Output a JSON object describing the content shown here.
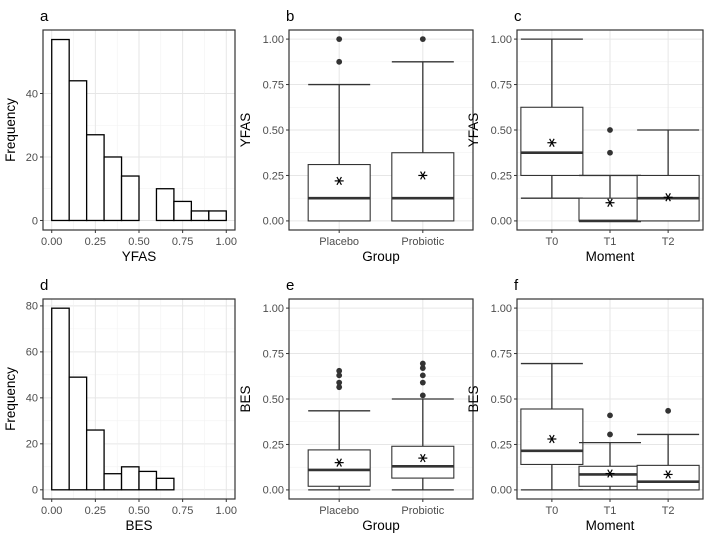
{
  "chart_data": [
    {
      "id": "a",
      "panel_label": "a",
      "type": "histogram",
      "xlabel": "YFAS",
      "ylabel": "Frequency",
      "xlim": [
        -0.05,
        1.05
      ],
      "ylim": [
        -3,
        60
      ],
      "x_ticks": [
        0.0,
        0.25,
        0.5,
        0.75,
        1.0
      ],
      "x_tick_labels": [
        "0.00",
        "0.25",
        "0.50",
        "0.75",
        "1.00"
      ],
      "y_ticks": [
        0,
        20,
        40
      ],
      "y_tick_labels": [
        "0",
        "20",
        "40"
      ],
      "bin_width": 0.1,
      "bin_centers": [
        0.05,
        0.15,
        0.25,
        0.35,
        0.45,
        0.65,
        0.75,
        0.85,
        0.95
      ],
      "counts": [
        57,
        44,
        27,
        20,
        14,
        10,
        6,
        3,
        3
      ]
    },
    {
      "id": "b",
      "panel_label": "b",
      "type": "boxplot",
      "xlabel": "Group",
      "ylabel": "YFAS",
      "ylim": [
        -0.05,
        1.05
      ],
      "y_ticks": [
        0,
        0.25,
        0.5,
        0.75,
        1.0
      ],
      "y_tick_labels": [
        "0.00",
        "0.25",
        "0.50",
        "0.75",
        "1.00"
      ],
      "categories": [
        "Placebo",
        "Probiotic"
      ],
      "boxes": [
        {
          "min": 0.0,
          "q1": 0.0,
          "median": 0.125,
          "q3": 0.31,
          "max": 0.75,
          "mean": 0.22,
          "outliers": [
            0.875,
            1.0
          ]
        },
        {
          "min": 0.0,
          "q1": 0.0,
          "median": 0.125,
          "q3": 0.375,
          "max": 0.875,
          "mean": 0.25,
          "outliers": [
            1.0
          ]
        }
      ]
    },
    {
      "id": "c",
      "panel_label": "c",
      "type": "boxplot",
      "xlabel": "Moment",
      "ylabel": "YFAS",
      "ylim": [
        -0.05,
        1.05
      ],
      "y_ticks": [
        0,
        0.25,
        0.5,
        0.75,
        1.0
      ],
      "y_tick_labels": [
        "0.00",
        "0.25",
        "0.50",
        "0.75",
        "1.00"
      ],
      "categories": [
        "T0",
        "T1",
        "T2"
      ],
      "boxes": [
        {
          "min": 0.125,
          "q1": 0.25,
          "median": 0.375,
          "q3": 0.625,
          "max": 1.0,
          "mean": 0.43,
          "outliers": []
        },
        {
          "min": 0.0,
          "q1": 0.0,
          "median": 0.0,
          "q3": 0.125,
          "max": 0.25,
          "mean": 0.1,
          "outliers": [
            0.375,
            0.5
          ]
        },
        {
          "min": 0.0,
          "q1": 0.0,
          "median": 0.125,
          "q3": 0.25,
          "max": 0.5,
          "mean": 0.13,
          "outliers": []
        }
      ]
    },
    {
      "id": "d",
      "panel_label": "d",
      "type": "histogram",
      "xlabel": "BES",
      "ylabel": "Frequency",
      "xlim": [
        -0.05,
        1.05
      ],
      "ylim": [
        -4,
        83
      ],
      "x_ticks": [
        0.0,
        0.25,
        0.5,
        0.75,
        1.0
      ],
      "x_tick_labels": [
        "0.00",
        "0.25",
        "0.50",
        "0.75",
        "1.00"
      ],
      "y_ticks": [
        0,
        20,
        40,
        60,
        80
      ],
      "y_tick_labels": [
        "0",
        "20",
        "40",
        "60",
        "80"
      ],
      "bin_width": 0.1,
      "bin_centers": [
        0.05,
        0.15,
        0.25,
        0.35,
        0.45,
        0.55,
        0.65
      ],
      "counts": [
        79,
        49,
        26,
        7,
        10,
        8,
        5
      ]
    },
    {
      "id": "e",
      "panel_label": "e",
      "type": "boxplot",
      "xlabel": "Group",
      "ylabel": "BES",
      "ylim": [
        -0.05,
        1.05
      ],
      "y_ticks": [
        0,
        0.25,
        0.5,
        0.75,
        1.0
      ],
      "y_tick_labels": [
        "0.00",
        "0.25",
        "0.50",
        "0.75",
        "1.00"
      ],
      "categories": [
        "Placebo",
        "Probiotic"
      ],
      "boxes": [
        {
          "min": 0.0,
          "q1": 0.02,
          "median": 0.11,
          "q3": 0.22,
          "max": 0.435,
          "mean": 0.15,
          "outliers": [
            0.565,
            0.59,
            0.63,
            0.655
          ]
        },
        {
          "min": 0.0,
          "q1": 0.065,
          "median": 0.13,
          "q3": 0.24,
          "max": 0.5,
          "mean": 0.175,
          "outliers": [
            0.52,
            0.59,
            0.63,
            0.67,
            0.695
          ]
        }
      ]
    },
    {
      "id": "f",
      "panel_label": "f",
      "type": "boxplot",
      "xlabel": "Moment",
      "ylabel": "BES",
      "ylim": [
        -0.05,
        1.05
      ],
      "y_ticks": [
        0,
        0.25,
        0.5,
        0.75,
        1.0
      ],
      "y_tick_labels": [
        "0.00",
        "0.25",
        "0.50",
        "0.75",
        "1.00"
      ],
      "categories": [
        "T0",
        "T1",
        "T2"
      ],
      "boxes": [
        {
          "min": 0.0,
          "q1": 0.14,
          "median": 0.215,
          "q3": 0.445,
          "max": 0.695,
          "mean": 0.28,
          "outliers": []
        },
        {
          "min": 0.0,
          "q1": 0.02,
          "median": 0.085,
          "q3": 0.13,
          "max": 0.26,
          "mean": 0.09,
          "outliers": [
            0.305,
            0.41
          ]
        },
        {
          "min": 0.0,
          "q1": 0.0,
          "median": 0.045,
          "q3": 0.135,
          "max": 0.305,
          "mean": 0.085,
          "outliers": [
            0.435
          ]
        }
      ]
    }
  ]
}
